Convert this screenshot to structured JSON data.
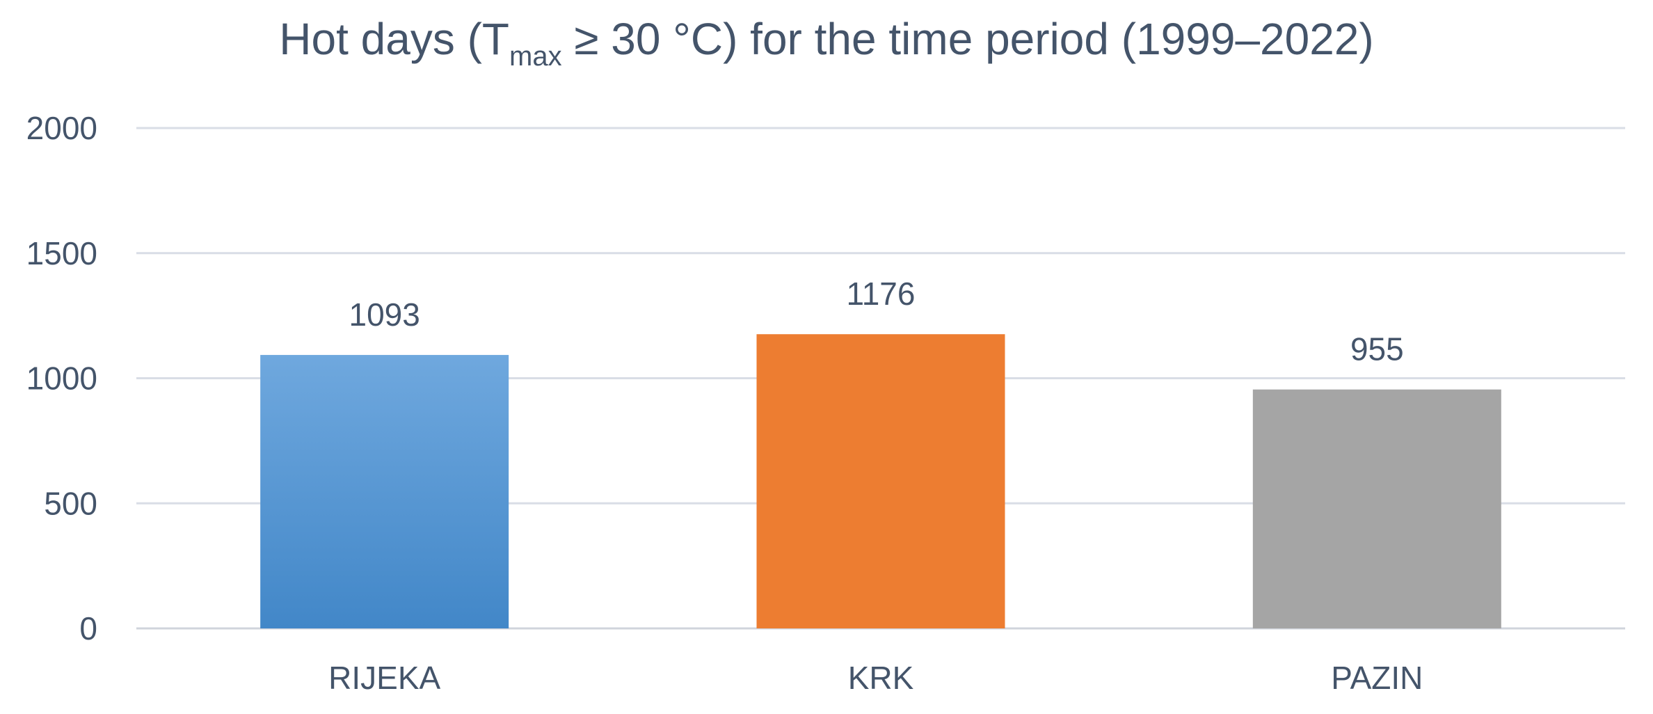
{
  "chart_data": {
    "type": "bar",
    "title": {
      "prefix": "Hot days (T",
      "subscript": "max",
      "suffix": " ≥ 30 °C) for the time period (1999–2022)"
    },
    "categories": [
      "RIJEKA",
      "KRK",
      "PAZIN"
    ],
    "values": [
      1093,
      1176,
      955
    ],
    "data_labels": [
      "1093",
      "1176",
      "955"
    ],
    "colors": {
      "RIJEKA": {
        "top": "#6fa8de",
        "bottom": "#4287c8"
      },
      "KRK": "#ed7d31",
      "PAZIN": "#a5a5a5"
    },
    "ylim": [
      0,
      2000
    ],
    "yticks": [
      0,
      500,
      1000,
      1500,
      2000
    ],
    "ytick_labels": [
      "0",
      "500",
      "1000",
      "1500",
      "2000"
    ],
    "grid": true,
    "legend": "none",
    "text_color": "#44546a"
  }
}
